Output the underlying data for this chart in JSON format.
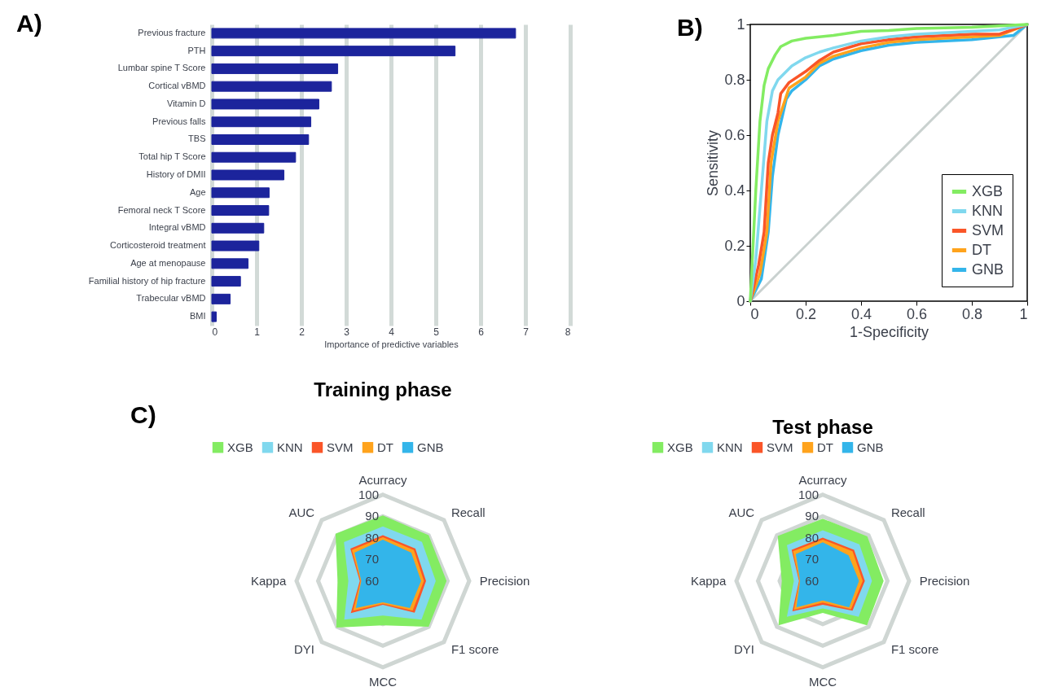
{
  "chart_data": [
    {
      "type": "bar",
      "orientation": "horizontal",
      "annotations": [
        "A)"
      ],
      "xlabel": "Importance of predictive variables",
      "categories": [
        "Previous fracture",
        "PTH",
        "Lumbar spine T Score",
        "Cortical vBMD",
        "Vitamin D",
        "Previous falls",
        "TBS",
        "Total hip T Score",
        "History of DMII",
        "Age",
        "Femoral neck T Score",
        "Integral vBMD",
        "Corticosteroid treatment",
        "Age at menopause",
        "Familial history of hip fracture",
        "Trabecular vBMD",
        "BMI"
      ],
      "values": [
        6.78,
        5.43,
        2.81,
        2.67,
        2.39,
        2.21,
        2.16,
        1.87,
        1.61,
        1.28,
        1.27,
        1.16,
        1.05,
        0.81,
        0.64,
        0.41,
        0.1
      ],
      "color": "#1c249c",
      "xlim": [
        0,
        8
      ],
      "xticks": [
        0,
        1,
        2,
        3,
        4,
        5,
        6,
        7,
        8
      ],
      "grid": "x"
    },
    {
      "type": "line",
      "annotations": [
        "B)"
      ],
      "xlabel": "1-Specificity",
      "ylabel": "Sensitivity",
      "xlim": [
        0,
        1
      ],
      "ylim": [
        0,
        1
      ],
      "xticks": [
        0,
        0.2,
        0.4,
        0.6,
        0.8,
        1
      ],
      "yticks": [
        0,
        0.2,
        0.4,
        0.6,
        0.8,
        1
      ],
      "legend": "bottom right",
      "grid": false,
      "series": [
        {
          "color": "#c9d1cf",
          "x": [
            0,
            1
          ],
          "values": [
            0,
            1
          ]
        },
        {
          "name": "XGB",
          "color": "#83ec62",
          "x": [
            0,
            0.005,
            0.02,
            0.035,
            0.05,
            0.065,
            0.09,
            0.11,
            0.15,
            0.2,
            0.3,
            0.4,
            0.5,
            0.6,
            0.8,
            1
          ],
          "values": [
            0,
            0.1,
            0.4,
            0.65,
            0.78,
            0.84,
            0.89,
            0.92,
            0.94,
            0.95,
            0.96,
            0.975,
            0.978,
            0.985,
            0.99,
            1
          ]
        },
        {
          "name": "KNN",
          "color": "#80d8ee",
          "x": [
            0,
            0.02,
            0.04,
            0.06,
            0.08,
            0.1,
            0.15,
            0.2,
            0.25,
            0.3,
            0.4,
            0.5,
            0.6,
            0.8,
            0.9,
            1
          ],
          "values": [
            0,
            0.15,
            0.4,
            0.65,
            0.76,
            0.8,
            0.85,
            0.88,
            0.9,
            0.915,
            0.94,
            0.955,
            0.965,
            0.975,
            0.98,
            1
          ]
        },
        {
          "name": "SVM",
          "color": "#fa5528",
          "x": [
            0,
            0.03,
            0.05,
            0.065,
            0.08,
            0.1,
            0.11,
            0.14,
            0.2,
            0.25,
            0.3,
            0.4,
            0.5,
            0.6,
            0.8,
            0.9,
            1
          ],
          "values": [
            0,
            0.13,
            0.25,
            0.5,
            0.6,
            0.68,
            0.75,
            0.79,
            0.83,
            0.87,
            0.9,
            0.93,
            0.945,
            0.955,
            0.965,
            0.965,
            1
          ]
        },
        {
          "name": "DT",
          "color": "#ffa31c",
          "x": [
            0,
            0.035,
            0.06,
            0.075,
            0.1,
            0.13,
            0.14,
            0.2,
            0.25,
            0.3,
            0.4,
            0.5,
            0.6,
            0.8,
            0.9,
            1
          ],
          "values": [
            0,
            0.1,
            0.25,
            0.5,
            0.65,
            0.74,
            0.77,
            0.81,
            0.86,
            0.885,
            0.915,
            0.935,
            0.945,
            0.955,
            0.96,
            1
          ]
        },
        {
          "name": "GNB",
          "color": "#33b5ea",
          "x": [
            0,
            0.04,
            0.065,
            0.08,
            0.1,
            0.13,
            0.15,
            0.2,
            0.25,
            0.3,
            0.4,
            0.5,
            0.6,
            0.8,
            0.9,
            0.95,
            1
          ],
          "values": [
            0,
            0.08,
            0.25,
            0.45,
            0.6,
            0.73,
            0.76,
            0.8,
            0.85,
            0.875,
            0.905,
            0.925,
            0.935,
            0.945,
            0.955,
            0.96,
            1
          ]
        }
      ]
    },
    {
      "type": "radar",
      "title": "Training phase",
      "annotations": [
        "C)"
      ],
      "categories": [
        "Acurracy",
        "Recall",
        "Precision",
        "F1 score",
        "MCC",
        "DYI",
        "Kappa",
        "AUC"
      ],
      "ylim": [
        60,
        100
      ],
      "yticks": [
        60,
        70,
        80,
        90,
        100
      ],
      "grid": true,
      "legend": "top",
      "series": [
        {
          "name": "XGB",
          "color": "#83ec62",
          "values": [
            90.4,
            90,
            89.5,
            90,
            80.5,
            90.5,
            81,
            91
          ]
        },
        {
          "name": "KNN",
          "color": "#80d8ee",
          "values": [
            85.3,
            85.6,
            84.5,
            85.3,
            76,
            85.3,
            76,
            85.5
          ]
        },
        {
          "name": "SVM",
          "color": "#fa5528",
          "values": [
            81.2,
            81.3,
            80,
            80.8,
            71,
            81,
            70.7,
            81.3
          ]
        },
        {
          "name": "DT",
          "color": "#ffa31c",
          "values": [
            80.3,
            80.3,
            79,
            79.5,
            70.5,
            79.5,
            70.3,
            80.3
          ]
        },
        {
          "name": "GNB",
          "color": "#33b5ea",
          "values": [
            79.2,
            78.6,
            77.7,
            77.7,
            69.9,
            77.7,
            70,
            78.6
          ]
        }
      ]
    },
    {
      "type": "radar",
      "title": "Test phase",
      "categories": [
        "Acurracy",
        "Recall",
        "Precision",
        "F1 score",
        "MCC",
        "DYI",
        "Kappa",
        "AUC"
      ],
      "ylim": [
        60,
        100
      ],
      "yticks": [
        60,
        70,
        80,
        90,
        100
      ],
      "grid": true,
      "legend": "top",
      "series": [
        {
          "name": "XGB",
          "color": "#83ec62",
          "values": [
            88.9,
            89.2,
            88.2,
            89,
            74.8,
            89,
            79,
            89.5
          ]
        },
        {
          "name": "KNN",
          "color": "#80d8ee",
          "values": [
            83.5,
            84,
            82.8,
            83.5,
            72.7,
            83.5,
            73.4,
            83.5
          ]
        },
        {
          "name": "SVM",
          "color": "#fa5528",
          "values": [
            80.1,
            80.5,
            79.5,
            79.5,
            71,
            79.9,
            71,
            80.4
          ]
        },
        {
          "name": "DT",
          "color": "#ffa31c",
          "values": [
            79.2,
            79.5,
            78.5,
            78.5,
            70,
            78.9,
            70.8,
            79.5
          ]
        },
        {
          "name": "GNB",
          "color": "#33b5ea",
          "values": [
            77.9,
            76.9,
            76.8,
            77.3,
            69,
            77.3,
            70.5,
            77.7
          ]
        }
      ]
    }
  ]
}
